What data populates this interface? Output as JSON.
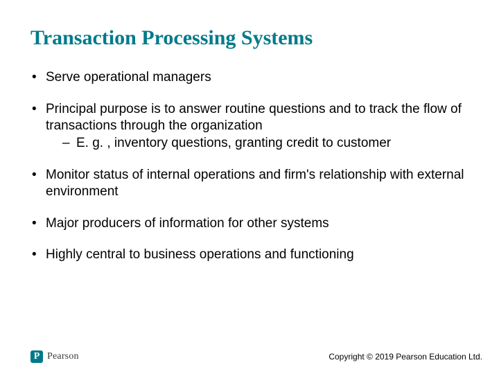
{
  "title": "Transaction Processing Systems",
  "title_color": "#007a8a",
  "bullets": {
    "b0": "Serve operational managers",
    "b1": "Principal purpose is to answer routine questions and to track the flow of transactions through the organization",
    "b1_sub0": "E. g. , inventory questions, granting credit to customer",
    "b2": "Monitor status of internal operations and firm's relationship with external environment",
    "b3": "Major producers of information for other systems",
    "b4": "Highly central to business operations and functioning"
  },
  "footer": {
    "logo_letter": "P",
    "logo_text": "Pearson",
    "copyright": "Copyright © 2019 Pearson Education Ltd."
  },
  "colors": {
    "accent": "#007a8a",
    "text": "#000000",
    "background": "#ffffff"
  },
  "typography": {
    "title_font": "Times New Roman",
    "title_size_pt": 30,
    "title_weight": "bold",
    "body_font": "Arial",
    "body_size_pt": 19
  }
}
